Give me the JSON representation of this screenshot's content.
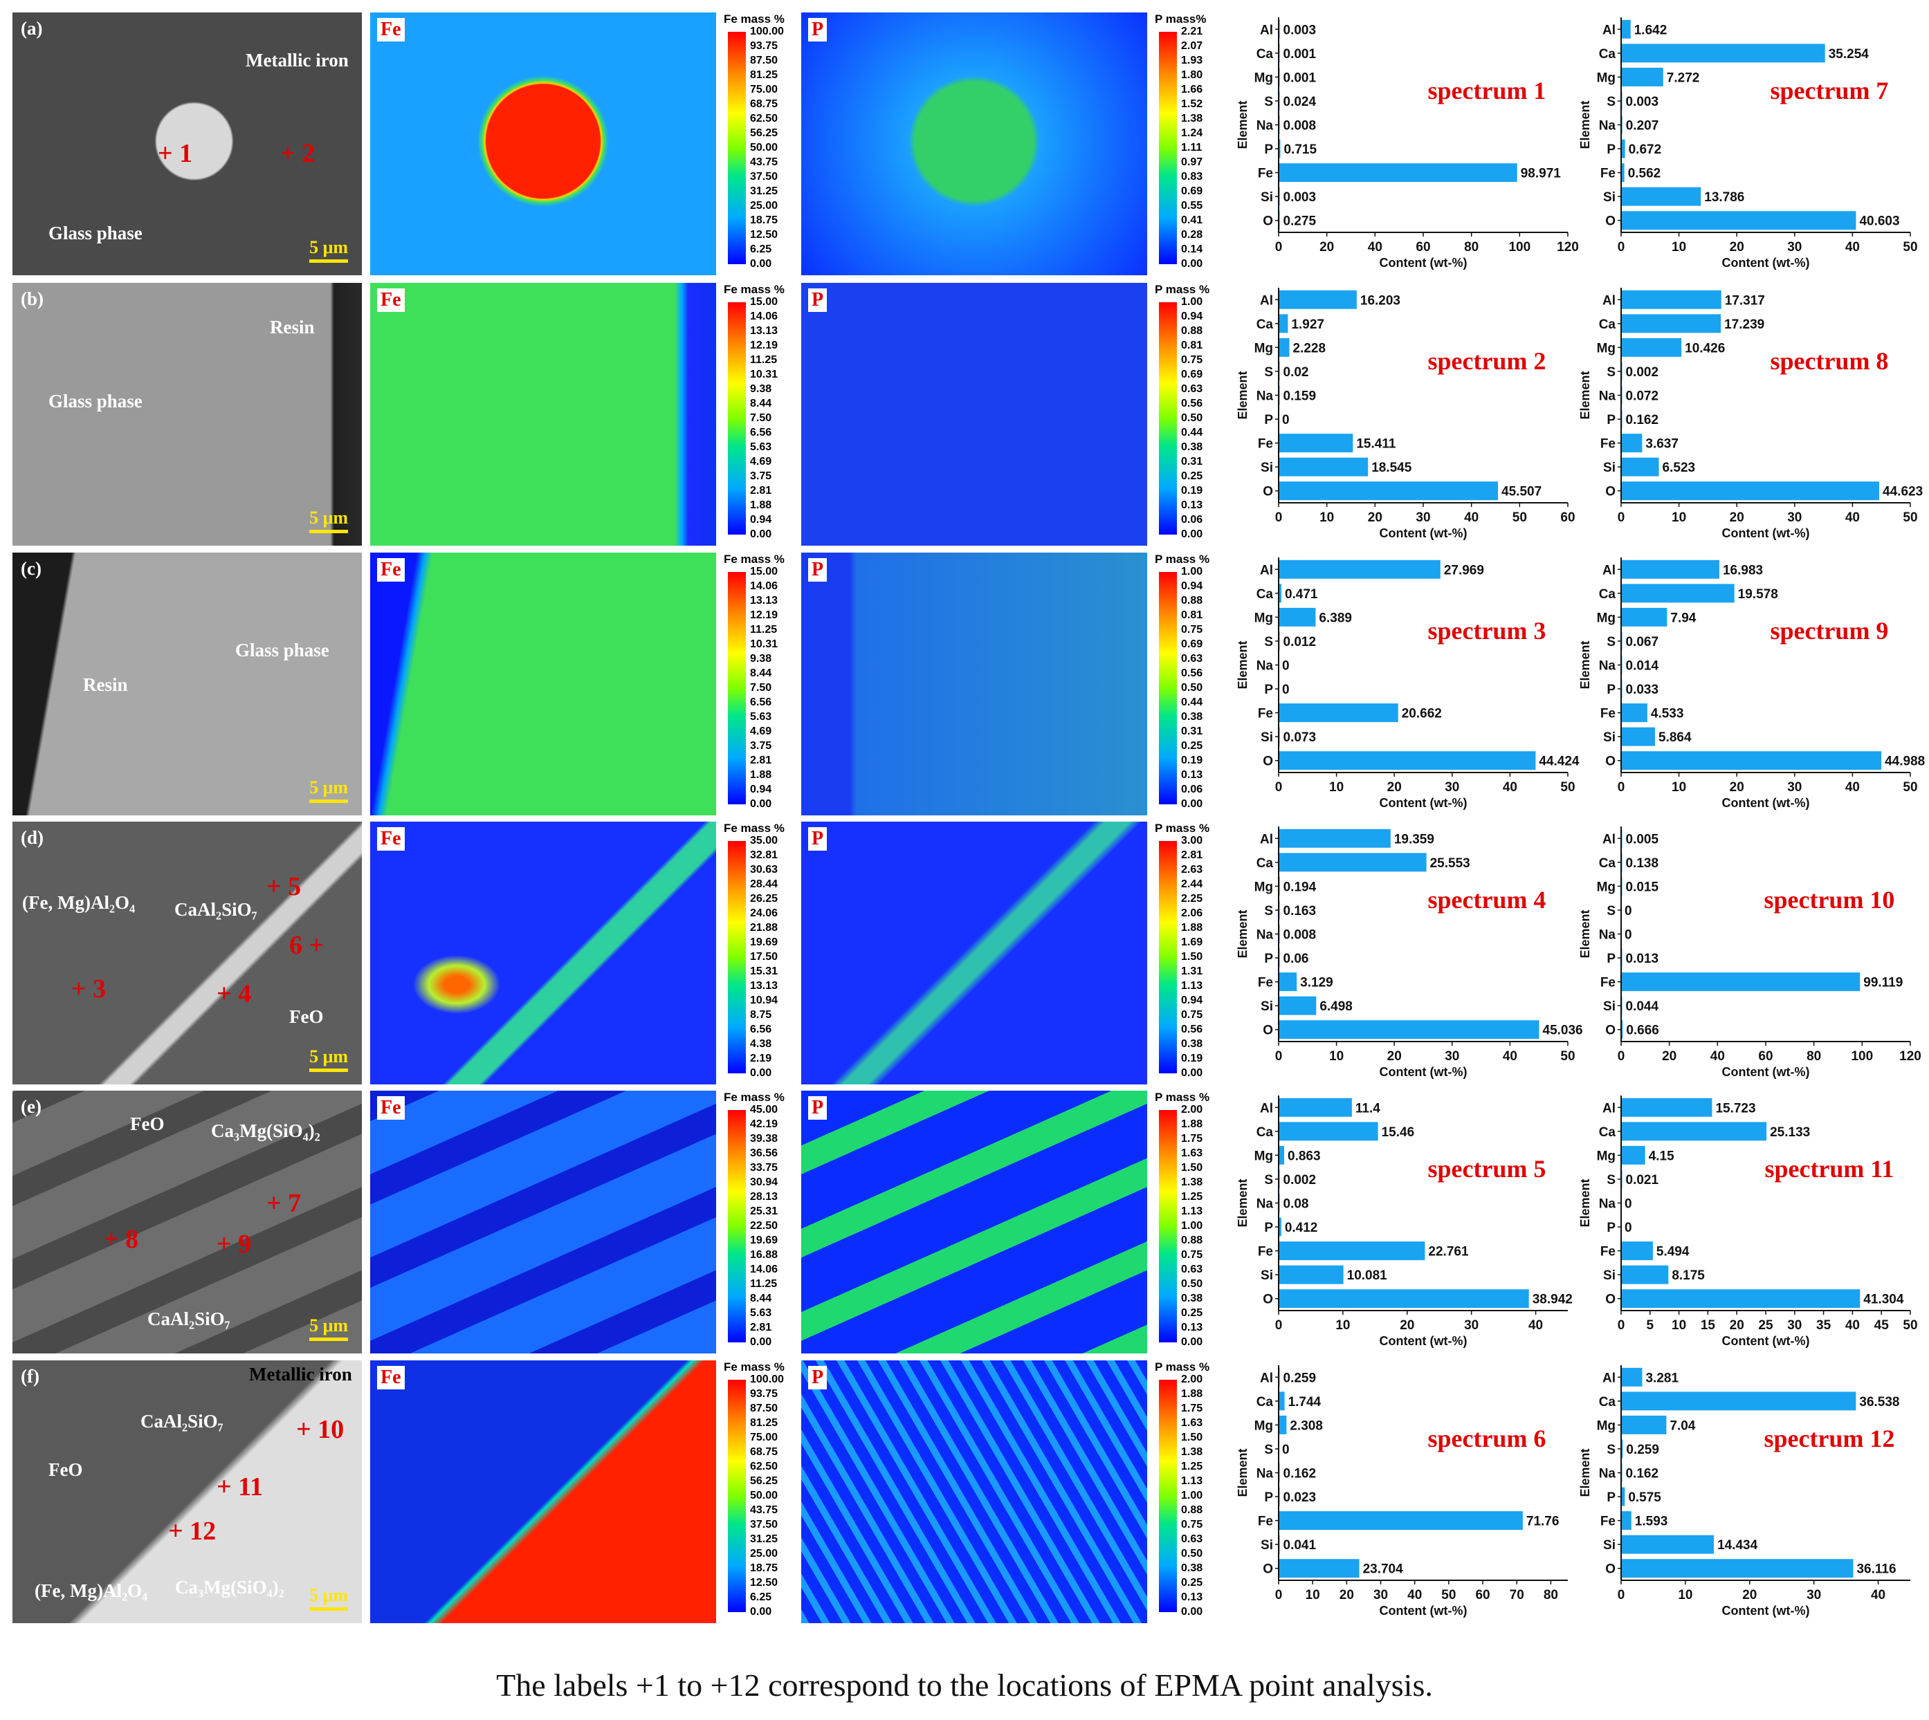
{
  "rows": [
    {
      "label": "(a)",
      "sem_texts": [
        {
          "text": "Metallic iron",
          "x": 355,
          "y": 72
        },
        {
          "text": "Glass phase",
          "x": 70,
          "y": 322
        }
      ],
      "sem_points": [
        {
          "text": "+ 1",
          "x": 228,
          "y": 200
        },
        {
          "text": "+ 2",
          "x": 405,
          "y": 200
        }
      ],
      "fe_bar": {
        "title": "Fe mass %",
        "ticks": [
          "100.00",
          "93.75",
          "87.50",
          "81.25",
          "75.00",
          "68.75",
          "62.50",
          "56.25",
          "50.00",
          "43.75",
          "37.50",
          "31.25",
          "25.00",
          "18.75",
          "12.50",
          "6.25",
          "0.00"
        ]
      },
      "p_bar": {
        "title": "P mass%",
        "ticks": [
          "2.21",
          "2.07",
          "1.93",
          "1.80",
          "1.66",
          "1.52",
          "1.38",
          "1.24",
          "1.11",
          "0.97",
          "0.83",
          "0.69",
          "0.55",
          "0.41",
          "0.28",
          "0.14",
          "0.00"
        ]
      }
    },
    {
      "label": "(b)",
      "sem_texts": [
        {
          "text": "Resin",
          "x": 390,
          "y": 458
        },
        {
          "text": "Glass phase",
          "x": 70,
          "y": 565
        }
      ],
      "sem_points": [],
      "fe_bar": {
        "title": "Fe mass %",
        "ticks": [
          "15.00",
          "14.06",
          "13.13",
          "12.19",
          "11.25",
          "10.31",
          "9.38",
          "8.44",
          "7.50",
          "6.56",
          "5.63",
          "4.69",
          "3.75",
          "2.81",
          "1.88",
          "0.94",
          "0.00"
        ]
      },
      "p_bar": {
        "title": "P mass %",
        "ticks": [
          "1.00",
          "0.94",
          "0.88",
          "0.81",
          "0.75",
          "0.69",
          "0.63",
          "0.56",
          "0.50",
          "0.44",
          "0.38",
          "0.31",
          "0.25",
          "0.19",
          "0.13",
          "0.06",
          "0.00"
        ]
      }
    },
    {
      "label": "(c)",
      "sem_texts": [
        {
          "text": "Glass phase",
          "x": 340,
          "y": 925
        },
        {
          "text": "Resin",
          "x": 120,
          "y": 975
        }
      ],
      "sem_points": [],
      "fe_bar": {
        "title": "Fe mass %",
        "ticks": [
          "15.00",
          "14.06",
          "13.13",
          "12.19",
          "11.25",
          "10.31",
          "9.38",
          "8.44",
          "7.50",
          "6.56",
          "5.63",
          "4.69",
          "3.75",
          "2.81",
          "1.88",
          "0.94",
          "0.00"
        ]
      },
      "p_bar": {
        "title": "P mass %",
        "ticks": [
          "1.00",
          "0.94",
          "0.88",
          "0.81",
          "0.75",
          "0.69",
          "0.63",
          "0.56",
          "0.50",
          "0.44",
          "0.38",
          "0.31",
          "0.25",
          "0.19",
          "0.13",
          "0.06",
          "0.00"
        ]
      }
    },
    {
      "label": "(d)",
      "sem_texts": [
        {
          "text": "(Fe, Mg)Al₂O₄",
          "x": 32,
          "y": 1290
        },
        {
          "text": "CaAl₂SiO₇",
          "x": 252,
          "y": 1300
        },
        {
          "text": "FeO",
          "x": 418,
          "y": 1455
        }
      ],
      "sem_points": [
        {
          "text": "+ 5",
          "x": 385,
          "y": 1260
        },
        {
          "text": "6 +",
          "x": 418,
          "y": 1345
        },
        {
          "text": "+ 3",
          "x": 103,
          "y": 1408
        },
        {
          "text": "+ 4",
          "x": 313,
          "y": 1415
        }
      ],
      "fe_bar": {
        "title": "Fe mass %",
        "ticks": [
          "35.00",
          "32.81",
          "30.63",
          "28.44",
          "26.25",
          "24.06",
          "21.88",
          "19.69",
          "17.50",
          "15.31",
          "13.13",
          "10.94",
          "8.75",
          "6.56",
          "4.38",
          "2.19",
          "0.00"
        ]
      },
      "p_bar": {
        "title": "P mass %",
        "ticks": [
          "3.00",
          "2.81",
          "2.63",
          "2.44",
          "2.25",
          "2.06",
          "1.88",
          "1.69",
          "1.50",
          "1.31",
          "1.13",
          "0.94",
          "0.75",
          "0.56",
          "0.38",
          "0.19",
          "0.00"
        ]
      }
    },
    {
      "label": "(e)",
      "sem_texts": [
        {
          "text": "FeO",
          "x": 188,
          "y": 1610
        },
        {
          "text": "Ca₃Mg(SiO₄)₂",
          "x": 305,
          "y": 1620
        },
        {
          "text": "CaAl₂SiO₇",
          "x": 213,
          "y": 1892
        }
      ],
      "sem_points": [
        {
          "text": "+ 7",
          "x": 385,
          "y": 1718
        },
        {
          "text": "+ 8",
          "x": 150,
          "y": 1770
        },
        {
          "text": "+ 9",
          "x": 313,
          "y": 1777
        }
      ],
      "fe_bar": {
        "title": "Fe mass %",
        "ticks": [
          "45.00",
          "42.19",
          "39.38",
          "36.56",
          "33.75",
          "30.94",
          "28.13",
          "25.31",
          "22.50",
          "19.69",
          "16.88",
          "14.06",
          "11.25",
          "8.44",
          "5.63",
          "2.81",
          "0.00"
        ]
      },
      "p_bar": {
        "title": "P mass %",
        "ticks": [
          "2.00",
          "1.88",
          "1.75",
          "1.63",
          "1.50",
          "1.38",
          "1.25",
          "1.13",
          "1.00",
          "0.88",
          "0.75",
          "0.63",
          "0.50",
          "0.38",
          "0.25",
          "0.13",
          "0.00"
        ]
      }
    },
    {
      "label": "(f)",
      "sem_texts": [
        {
          "text": "Metallic iron",
          "x": 360,
          "y": 1972
        },
        {
          "text": "CaAl₂SiO₇",
          "x": 203,
          "y": 2040
        },
        {
          "text": "FeO",
          "x": 70,
          "y": 2110
        },
        {
          "text": "(Fe, Mg)Al₂O₄",
          "x": 50,
          "y": 2285
        },
        {
          "text": "Ca₃Mg(SiO₄)₂",
          "x": 253,
          "y": 2280
        }
      ],
      "sem_points": [
        {
          "text": "+ 10",
          "x": 428,
          "y": 2045
        },
        {
          "text": "+ 11",
          "x": 313,
          "y": 2128
        },
        {
          "text": "+ 12",
          "x": 243,
          "y": 2192
        }
      ],
      "fe_bar": {
        "title": "Fe mass %",
        "ticks": [
          "100.00",
          "93.75",
          "87.50",
          "81.25",
          "75.00",
          "68.75",
          "62.50",
          "56.25",
          "50.00",
          "43.75",
          "37.50",
          "31.25",
          "25.00",
          "18.75",
          "12.50",
          "6.25",
          "0.00"
        ]
      },
      "p_bar": {
        "title": "P mass %",
        "ticks": [
          "2.00",
          "1.88",
          "1.75",
          "1.63",
          "1.50",
          "1.38",
          "1.25",
          "1.13",
          "1.00",
          "0.88",
          "0.75",
          "0.63",
          "0.50",
          "0.38",
          "0.25",
          "0.13",
          "0.00"
        ]
      }
    }
  ],
  "scale_label": "5 μm",
  "map_labels": {
    "fe": "Fe",
    "p": "P"
  },
  "chart_common": {
    "elements": [
      "Al",
      "Ca",
      "Mg",
      "S",
      "Na",
      "P",
      "Fe",
      "Si",
      "O"
    ],
    "ylabel": "Element",
    "xlabel": "Content (wt-%)",
    "bar_color": "#1aa3f0",
    "title_color": "#e00000"
  },
  "chart_data": [
    {
      "type": "bar",
      "title": "spectrum 1",
      "values": [
        0.003,
        0.001,
        0.001,
        0.024,
        0.008,
        0.715,
        98.971,
        0.003,
        0.275
      ],
      "xlim": [
        0,
        120
      ],
      "xticks": [
        0,
        20,
        40,
        60,
        80,
        100,
        120
      ]
    },
    {
      "type": "bar",
      "title": "spectrum 7",
      "values": [
        1.642,
        35.254,
        7.272,
        0.003,
        0.207,
        0.672,
        0.562,
        13.786,
        40.603
      ],
      "xlim": [
        0,
        50
      ],
      "xticks": [
        0,
        10,
        20,
        30,
        40,
        50
      ]
    },
    {
      "type": "bar",
      "title": "spectrum 2",
      "values": [
        16.203,
        1.927,
        2.228,
        0.02,
        0.159,
        0,
        15.411,
        18.545,
        45.507
      ],
      "xlim": [
        0,
        60
      ],
      "xticks": [
        0,
        10,
        20,
        30,
        40,
        50,
        60
      ]
    },
    {
      "type": "bar",
      "title": "spectrum 8",
      "values": [
        17.317,
        17.239,
        10.426,
        0.002,
        0.072,
        0.162,
        3.637,
        6.523,
        44.623
      ],
      "xlim": [
        0,
        50
      ],
      "xticks": [
        0,
        10,
        20,
        30,
        40,
        50
      ]
    },
    {
      "type": "bar",
      "title": "spectrum 3",
      "values": [
        27.969,
        0.471,
        6.389,
        0.012,
        0,
        0,
        20.662,
        0.073,
        44.424
      ],
      "xlim": [
        0,
        50
      ],
      "xticks": [
        0,
        10,
        20,
        30,
        40,
        50
      ]
    },
    {
      "type": "bar",
      "title": "spectrum 9",
      "values": [
        16.983,
        19.578,
        7.94,
        0.067,
        0.014,
        0.033,
        4.533,
        5.864,
        44.988
      ],
      "xlim": [
        0,
        50
      ],
      "xticks": [
        0,
        10,
        20,
        30,
        40,
        50
      ]
    },
    {
      "type": "bar",
      "title": "spectrum 4",
      "values": [
        19.359,
        25.553,
        0.194,
        0.163,
        0.008,
        0.06,
        3.129,
        6.498,
        45.036
      ],
      "xlim": [
        0,
        50
      ],
      "xticks": [
        0,
        10,
        20,
        30,
        40,
        50
      ]
    },
    {
      "type": "bar",
      "title": "spectrum 10",
      "values": [
        0.005,
        0.138,
        0.015,
        0,
        0,
        0.013,
        99.119,
        0.044,
        0.666
      ],
      "xlim": [
        0,
        120
      ],
      "xticks": [
        0,
        20,
        40,
        60,
        80,
        100,
        120
      ]
    },
    {
      "type": "bar",
      "title": "spectrum 5",
      "values": [
        11.4,
        15.46,
        0.863,
        0.002,
        0.08,
        0.412,
        22.761,
        10.081,
        38.942
      ],
      "xlim": [
        0,
        45
      ],
      "xticks": [
        0,
        10,
        20,
        30,
        40
      ]
    },
    {
      "type": "bar",
      "title": "spectrum 11",
      "values": [
        15.723,
        25.133,
        4.15,
        0.021,
        0,
        0,
        5.494,
        8.175,
        41.304
      ],
      "xlim": [
        0,
        50
      ],
      "xticks": [
        0,
        5,
        10,
        15,
        20,
        25,
        30,
        35,
        40,
        45,
        50
      ]
    },
    {
      "type": "bar",
      "title": "spectrum 6",
      "values": [
        0.259,
        1.744,
        2.308,
        0,
        0.162,
        0.023,
        71.76,
        0.041,
        23.704
      ],
      "xlim": [
        0,
        85
      ],
      "xticks": [
        0,
        10,
        20,
        30,
        40,
        50,
        60,
        70,
        80
      ]
    },
    {
      "type": "bar",
      "title": "spectrum 12",
      "values": [
        3.281,
        36.538,
        7.04,
        0.259,
        0.162,
        0.575,
        1.593,
        14.434,
        36.116
      ],
      "xlim": [
        0,
        45
      ],
      "xticks": [
        0,
        10,
        20,
        30,
        40
      ]
    }
  ],
  "caption": "The labels +1 to +12 correspond to the locations of EPMA point analysis."
}
